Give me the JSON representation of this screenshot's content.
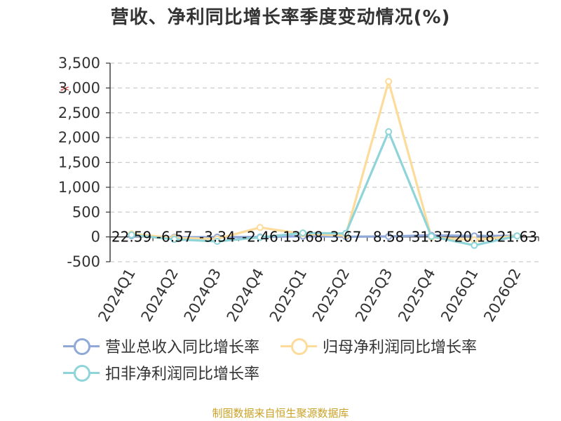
{
  "title": "营收、净利同比增长率季度变动情况(%)",
  "source": "制图数据来自恒生聚源数据库",
  "toolbar_icon": "scissors-icon",
  "chart_data": {
    "type": "line",
    "title": "营收、净利同比增长率季度变动情况(%)",
    "categories": [
      "2024Q1",
      "2024Q2",
      "2024Q3",
      "2024Q4",
      "2025Q1",
      "2025Q2",
      "2025Q3",
      "2025Q4",
      "2026Q1",
      "2026Q2"
    ],
    "yticks": [
      "3,500",
      "3,000",
      "2,500",
      "2,000",
      "1,500",
      "1,000",
      "500",
      "0",
      "-500"
    ],
    "ylim": [
      -500,
      3500
    ],
    "grid": true,
    "legend_position": "bottom",
    "series": [
      {
        "name": "营业总收入同比增长率",
        "color": "#8fa8d8",
        "values": [
          22.59,
          -6.57,
          -3.34,
          -2.46,
          13.68,
          3.67,
          8.58,
          31.37,
          20.18,
          21.63
        ],
        "labels": [
          "22.59",
          "-6.57",
          "-3.34",
          "-2.46",
          "13.68",
          "3.67",
          "8.58",
          "31.37",
          "20.18",
          "21.63"
        ]
      },
      {
        "name": "归母净利润同比增长率",
        "color": "#fddb9a",
        "values": [
          60,
          -20,
          -40,
          190,
          60,
          30,
          3130,
          -10,
          -60,
          20
        ]
      },
      {
        "name": "扣非净利润同比增长率",
        "color": "#8fd4d8",
        "values": [
          40,
          -50,
          -90,
          -10,
          80,
          70,
          2120,
          10,
          -170,
          20
        ]
      }
    ]
  }
}
